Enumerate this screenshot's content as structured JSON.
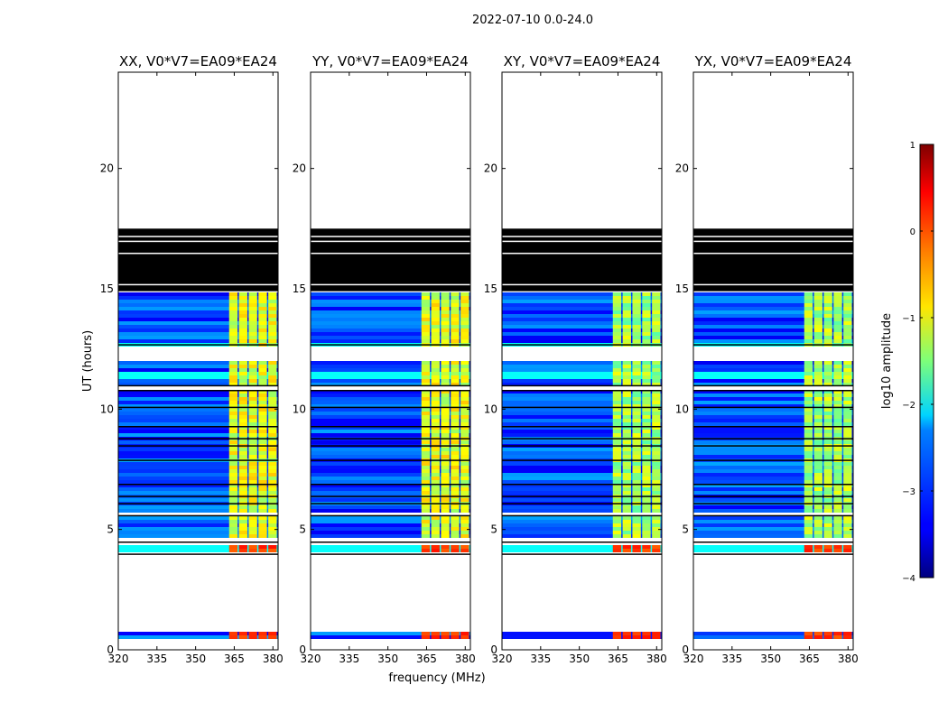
{
  "chart_data": {
    "type": "heatmap",
    "suptitle": "2022-07-10 0.0-24.0",
    "xlabel": "frequency (MHz)",
    "ylabel": "UT (hours)",
    "xlim": [
      320,
      382
    ],
    "ylim": [
      0,
      24
    ],
    "xticks": [
      320,
      335,
      350,
      365,
      380
    ],
    "yticks": [
      0,
      5,
      10,
      15,
      20
    ],
    "panels": [
      {
        "title": "XX, V0*V7=EA09*EA24",
        "pol": "XX"
      },
      {
        "title": "YY, V0*V7=EA09*EA24",
        "pol": "YY"
      },
      {
        "title": "XY, V0*V7=EA09*EA24",
        "pol": "XY"
      },
      {
        "title": "YX, V0*V7=EA09*EA24",
        "pol": "YX"
      }
    ],
    "colorbar": {
      "label": "log10 amplitude",
      "colormap": "jet",
      "vmin": -4,
      "vmax": 1,
      "ticks": [
        1,
        0,
        -1,
        -2,
        -3,
        -4
      ]
    },
    "data_description": {
      "data_intervals_hours": [
        [
          0.45,
          0.7
        ],
        [
          4.1,
          4.4
        ],
        [
          4.6,
          5.6
        ],
        [
          5.7,
          10.8
        ],
        [
          11.0,
          11.2
        ],
        [
          11.3,
          12.0
        ],
        [
          12.6,
          14.8
        ]
      ],
      "flagged_black_interval_hours": [
        14.9,
        17.5
      ],
      "bright_band_mhz": [
        363,
        382
      ],
      "background_log10_amplitude": -3,
      "band_log10_amplitude": -1
    }
  }
}
